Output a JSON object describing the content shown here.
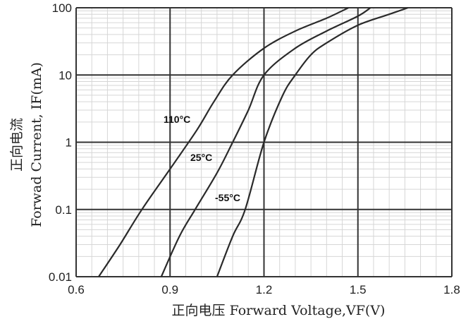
{
  "chart_data": {
    "type": "line",
    "xlabel": "正向电压 Forward Voltage,VF(V)",
    "ylabel": "正向电流",
    "ylabel2": "Forwad Current, IF(mA)",
    "xlim": [
      0.6,
      1.8
    ],
    "ylim": [
      0.01,
      100
    ],
    "y_scale": "log",
    "x_ticks": [
      "0.6",
      "0.9",
      "1.2",
      "1.5",
      "1.8"
    ],
    "y_ticks": [
      "0.01",
      "0.1",
      "1",
      "10",
      "100"
    ],
    "grid": true,
    "series": [
      {
        "name": "110°C",
        "x": [
          0.672,
          0.74,
          0.81,
          0.9,
          0.985,
          1.04,
          1.1,
          1.2,
          1.3,
          1.4,
          1.47
        ],
        "y": [
          0.01,
          0.03,
          0.1,
          0.4,
          1.5,
          4,
          10,
          25,
          45,
          70,
          100
        ]
      },
      {
        "name": "25°C",
        "x": [
          0.872,
          0.93,
          0.98,
          1.05,
          1.1,
          1.15,
          1.2,
          1.3,
          1.4,
          1.5,
          1.54
        ],
        "y": [
          0.01,
          0.04,
          0.1,
          0.35,
          1,
          3,
          10,
          25,
          45,
          75,
          100
        ]
      },
      {
        "name": "-55°C",
        "x": [
          1.05,
          1.1,
          1.14,
          1.2,
          1.26,
          1.3,
          1.35,
          1.4,
          1.5,
          1.6,
          1.66
        ],
        "y": [
          0.01,
          0.04,
          0.1,
          1,
          5,
          10,
          20,
          30,
          55,
          80,
          100
        ]
      }
    ],
    "annotations": [
      {
        "text": "110°C",
        "series": 0
      },
      {
        "text": "25°C",
        "series": 1
      },
      {
        "text": "-55°C",
        "series": 2
      }
    ]
  }
}
